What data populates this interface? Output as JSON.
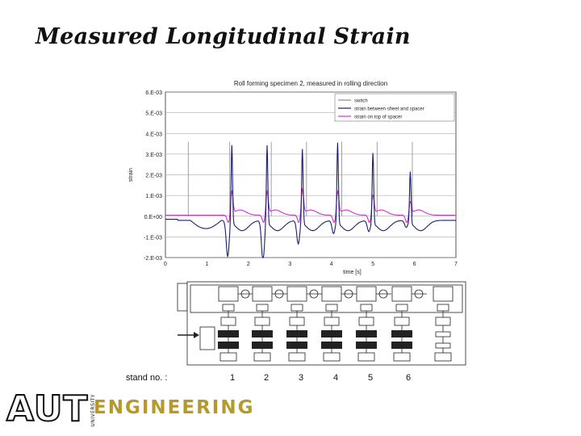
{
  "slide": {
    "title": "Measured Longitudinal Strain"
  },
  "chart_data": {
    "type": "line",
    "title": "Roll forming specimen 2, measured in rolling direction",
    "xlabel": "time [s]",
    "ylabel": "strain",
    "xlim": [
      0,
      7
    ],
    "ylim": [
      -0.002,
      0.006
    ],
    "x_ticks": [
      "0",
      "1",
      "2",
      "3",
      "4",
      "5",
      "6",
      "7"
    ],
    "y_ticks": [
      "6.E-03",
      "5.E-03",
      "4.E-03",
      "3.E-03",
      "2.E-03",
      "1.E-03",
      "0.E+00",
      "-1.E-03",
      "-2.E-03"
    ],
    "legend": [
      "switch",
      "strain between sheet and spacer",
      "strain on top of spacer"
    ],
    "colors": {
      "switch": "#8a8a8a",
      "between": "#1a1f6e",
      "top": "#cc33cc"
    },
    "switch_times": [
      0.55,
      1.55,
      2.55,
      3.4,
      4.25,
      5.1,
      5.95
    ],
    "peaks": [
      {
        "t": 1.6,
        "between_peak": 0.0038,
        "between_dip": -0.0017,
        "top_peak": 0.0011
      },
      {
        "t": 2.45,
        "between_peak": 0.0038,
        "between_dip": -0.0019,
        "top_peak": 0.0011
      },
      {
        "t": 3.3,
        "between_peak": 0.0036,
        "between_dip": -0.0011,
        "top_peak": 0.0012
      },
      {
        "t": 4.15,
        "between_peak": 0.0039,
        "between_dip": -0.0006,
        "top_peak": 0.0011
      },
      {
        "t": 5.0,
        "between_peak": 0.0034,
        "between_dip": -0.0005,
        "top_peak": 0.0009
      },
      {
        "t": 5.9,
        "between_peak": 0.0025,
        "between_dip": -0.0003,
        "top_peak": 0.0006
      }
    ]
  },
  "mill": {
    "stand_caption": "stand no. :",
    "stands": [
      "1",
      "2",
      "3",
      "4",
      "5",
      "6"
    ]
  },
  "logo": {
    "primary": "AUT",
    "vertical": "UNIVERSITY",
    "secondary": "ENGINEERING"
  }
}
